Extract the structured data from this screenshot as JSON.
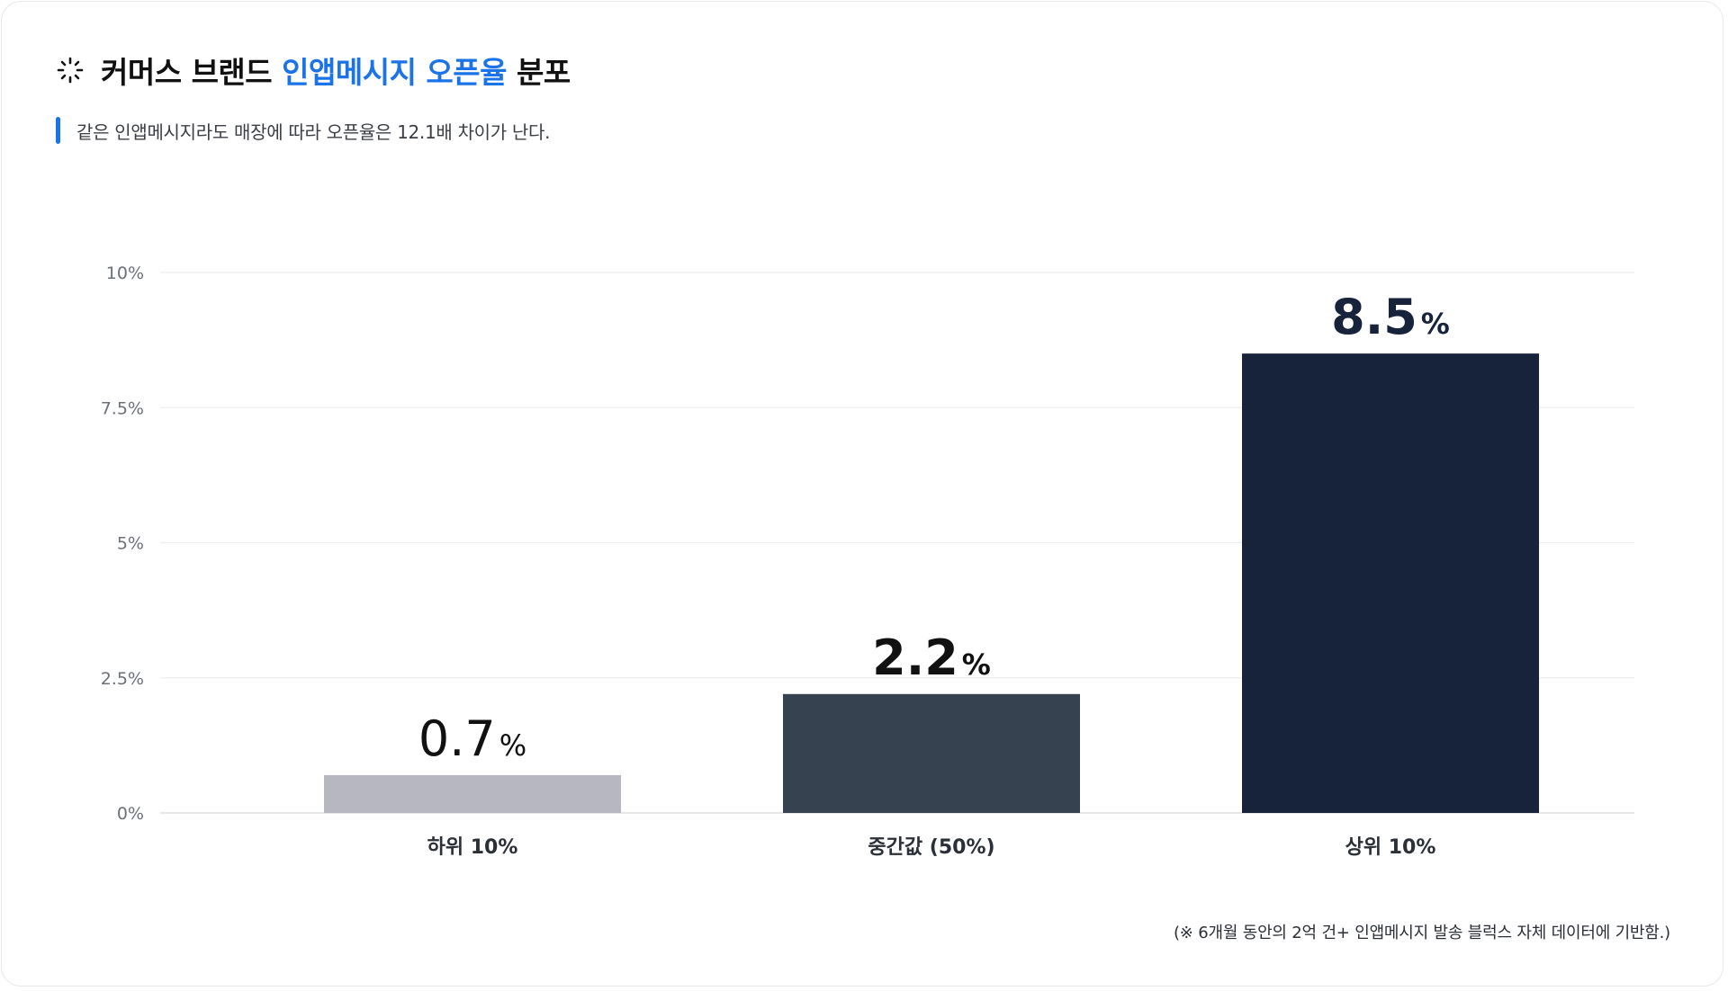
{
  "header": {
    "title_prefix": "커머스 브랜드 ",
    "title_highlight": "인앱메시지 오픈율",
    "title_suffix": " 분포",
    "subtitle": "같은 인앱메시지라도 매장에 따라 오픈율은 12.1배 차이가 난다.",
    "icon": "sparkle-loader-icon",
    "accent_color": "#1a73e8"
  },
  "chart_data": {
    "type": "bar",
    "categories": [
      "하위 10%",
      "중간값 (50%)",
      "상위 10%"
    ],
    "values": [
      0.7,
      2.2,
      8.5
    ],
    "value_labels": [
      "0.7",
      "2.2",
      "8.5"
    ],
    "value_unit": "%",
    "bar_colors": [
      "#b6b7c0",
      "#374250",
      "#17233b"
    ],
    "yticks": [
      "0%",
      "2.5%",
      "5%",
      "7.5%",
      "10%"
    ],
    "ytick_values": [
      0,
      2.5,
      5,
      7.5,
      10
    ],
    "ylim": [
      0,
      10
    ],
    "grid": true
  },
  "footer": {
    "note": "(※ 6개월 동안의 2억 건+ 인앱메시지 발송 블럭스 자체 데이터에 기반함.)"
  }
}
